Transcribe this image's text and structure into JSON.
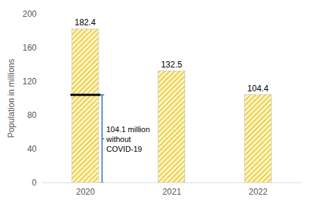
{
  "chart_data": {
    "type": "bar",
    "y_label": "Population in millions",
    "categories": [
      "2020",
      "2021",
      "2022"
    ],
    "values": [
      182.4,
      132.5,
      104.4
    ],
    "color": "#e6c229",
    "ylim": [
      0,
      200
    ],
    "yticks": [
      0,
      40,
      80,
      120,
      160,
      200
    ],
    "grid": false,
    "data_labels": true,
    "annotations": [
      {
        "category": "2020",
        "value": 104.1,
        "label": [
          "104.1 million",
          "without",
          "COVID-19"
        ],
        "color": "#2e75b6"
      }
    ]
  }
}
